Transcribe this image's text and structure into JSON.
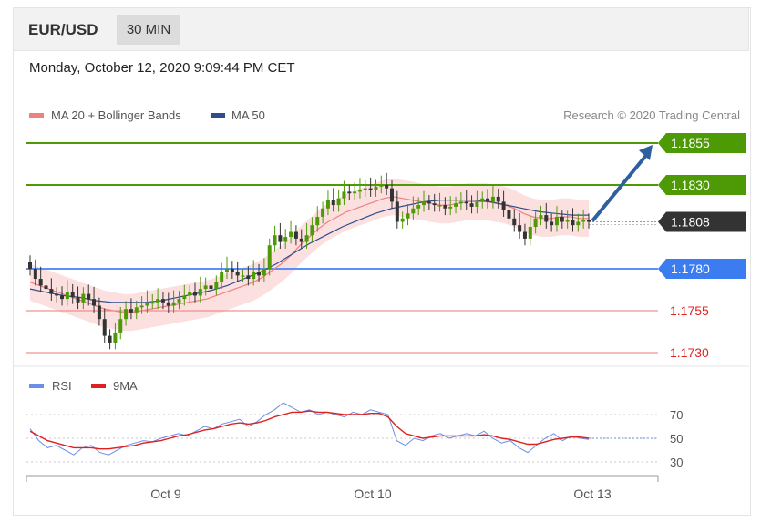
{
  "header": {
    "pair": "EUR/USD",
    "timeframe": "30 MIN"
  },
  "datetime": "Monday, October 12, 2020 9:09:44 PM CET",
  "legend": {
    "items": [
      {
        "label": "MA 20 + Bollinger Bands",
        "color": "#f08080"
      },
      {
        "label": "MA 50",
        "color": "#2e4d8a"
      }
    ],
    "credit": "Research © 2020 Trading Central"
  },
  "rsi_legend": {
    "items": [
      {
        "label": "RSI",
        "color": "#6a8fe6"
      },
      {
        "label": "9MA",
        "color": "#e02020"
      }
    ]
  },
  "colors": {
    "green": "#4e9a06",
    "blue": "#5b8ff9",
    "red": "#ee7777",
    "arrow": "#2f5f9e",
    "current": "#333333",
    "candle_up": "#4e9a06",
    "candle_down": "#333333",
    "band": "#fbd6d6"
  },
  "chart_data": [
    {
      "type": "candlestick",
      "title": "EUR/USD",
      "ylim": [
        1.1722,
        1.1865
      ],
      "xlabels": [
        "Oct 9",
        "Oct 10",
        "Oct 13"
      ],
      "levels": [
        {
          "value": 1.1855,
          "label": "1.1855",
          "kind": "resistance"
        },
        {
          "value": 1.183,
          "label": "1.1830",
          "kind": "resistance"
        },
        {
          "value": 1.1808,
          "label": "1.1808",
          "kind": "current"
        },
        {
          "value": 1.178,
          "label": "1.1780",
          "kind": "pivot"
        },
        {
          "value": 1.1755,
          "label": "1.1755",
          "kind": "support"
        },
        {
          "value": 1.173,
          "label": "1.1730",
          "kind": "support"
        }
      ],
      "series": [
        {
          "name": "Price",
          "values": [
            1.178,
            1.1774,
            1.177,
            1.1768,
            1.1765,
            1.1764,
            1.1762,
            1.1766,
            1.1763,
            1.176,
            1.1765,
            1.1762,
            1.1758,
            1.175,
            1.174,
            1.1736,
            1.1742,
            1.175,
            1.1756,
            1.1754,
            1.1757,
            1.1758,
            1.176,
            1.176,
            1.1762,
            1.176,
            1.1758,
            1.176,
            1.1762,
            1.1764,
            1.1766,
            1.1764,
            1.1768,
            1.177,
            1.1768,
            1.1772,
            1.1778,
            1.178,
            1.1778,
            1.1776,
            1.1776,
            1.1774,
            1.1778,
            1.1776,
            1.178,
            1.1794,
            1.18,
            1.1796,
            1.1799,
            1.1802,
            1.1798,
            1.1796,
            1.18,
            1.1806,
            1.1811,
            1.1816,
            1.1821,
            1.1818,
            1.1822,
            1.1826,
            1.1825,
            1.1826,
            1.1827,
            1.1828,
            1.1827,
            1.1829,
            1.183,
            1.1828,
            1.182,
            1.1808,
            1.181,
            1.1813,
            1.1816,
            1.1818,
            1.182,
            1.1819,
            1.1818,
            1.1818,
            1.1816,
            1.1817,
            1.1819,
            1.182,
            1.1819,
            1.1817,
            1.182,
            1.1822,
            1.182,
            1.1823,
            1.182,
            1.1815,
            1.181,
            1.1806,
            1.1802,
            1.1798,
            1.1805,
            1.181,
            1.1812,
            1.1808,
            1.1806,
            1.1811,
            1.1808,
            1.1809,
            1.1806,
            1.1808,
            1.1809,
            1.1808
          ]
        },
        {
          "name": "MA 20",
          "values": [
            1.1772,
            1.177,
            1.1768,
            1.1766,
            1.1764,
            1.1762,
            1.176,
            1.1758,
            1.1756,
            1.1755,
            1.1754,
            1.1754,
            1.1755,
            1.1756,
            1.1757,
            1.1758,
            1.1759,
            1.176,
            1.1761,
            1.1762,
            1.1764,
            1.1766,
            1.1768,
            1.177,
            1.1772,
            1.1775,
            1.1779,
            1.1783,
            1.1788,
            1.1794,
            1.1799,
            1.1804,
            1.1808,
            1.1811,
            1.1814,
            1.1816,
            1.1818,
            1.182,
            1.1822,
            1.1823,
            1.1822,
            1.1821,
            1.182,
            1.1819,
            1.1818,
            1.1818,
            1.1819,
            1.182,
            1.182,
            1.182,
            1.1819,
            1.1818,
            1.1816,
            1.1813,
            1.1811,
            1.181,
            1.181,
            1.1811,
            1.1811,
            1.181,
            1.181
          ]
        },
        {
          "name": "MA 50",
          "values": [
            1.1768,
            1.1766,
            1.1764,
            1.1763,
            1.1761,
            1.176,
            1.176,
            1.176,
            1.1761,
            1.1763,
            1.1765,
            1.1767,
            1.177,
            1.1774,
            1.1778,
            1.1783,
            1.1789,
            1.1795,
            1.18,
            1.1805,
            1.1809,
            1.1813,
            1.1816,
            1.1818,
            1.182,
            1.1821,
            1.1821,
            1.1821,
            1.182,
            1.1818,
            1.1816,
            1.1814,
            1.1813,
            1.1812,
            1.1812
          ]
        }
      ],
      "forecast": {
        "from": 1.1808,
        "to": 1.1855
      }
    },
    {
      "type": "line",
      "title": "RSI",
      "ylim": [
        25,
        85
      ],
      "yticks": [
        70,
        50,
        30
      ],
      "series": [
        {
          "name": "RSI",
          "values": [
            58,
            48,
            42,
            44,
            40,
            36,
            42,
            44,
            38,
            36,
            40,
            44,
            46,
            48,
            47,
            50,
            52,
            54,
            52,
            56,
            60,
            58,
            62,
            64,
            66,
            60,
            64,
            70,
            74,
            80,
            76,
            72,
            74,
            70,
            72,
            70,
            68,
            72,
            70,
            74,
            72,
            70,
            48,
            44,
            50,
            48,
            52,
            54,
            50,
            52,
            54,
            52,
            56,
            50,
            46,
            48,
            42,
            38,
            44,
            50,
            54,
            48,
            52,
            50,
            49
          ]
        },
        {
          "name": "9MA",
          "values": [
            56,
            52,
            48,
            46,
            44,
            42,
            42,
            42,
            41,
            41,
            42,
            43,
            44,
            46,
            47,
            48,
            50,
            52,
            53,
            55,
            57,
            58,
            60,
            62,
            63,
            62,
            63,
            65,
            68,
            70,
            72,
            72,
            73,
            72,
            72,
            71,
            70,
            70,
            70,
            71,
            71,
            68,
            60,
            54,
            52,
            50,
            51,
            52,
            52,
            52,
            52,
            52,
            53,
            52,
            50,
            49,
            47,
            45,
            45,
            47,
            49,
            50,
            51,
            51,
            50
          ]
        }
      ]
    }
  ]
}
